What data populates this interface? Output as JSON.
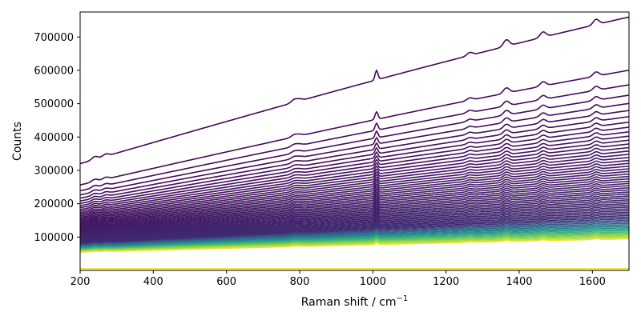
{
  "chart_data": {
    "type": "line",
    "title": "",
    "xlabel_main": "Raman shift / cm",
    "xlabel_sup": "−1",
    "ylabel": "Counts",
    "xlim": [
      200,
      1700
    ],
    "ylim": [
      0,
      775000
    ],
    "x_ticks": [
      200,
      400,
      600,
      800,
      1000,
      1200,
      1400,
      1600
    ],
    "x_tick_labels": [
      "200",
      "400",
      "600",
      "800",
      "1000",
      "1200",
      "1400",
      "1600"
    ],
    "y_ticks": [
      100000,
      200000,
      300000,
      400000,
      500000,
      600000,
      700000
    ],
    "y_tick_labels": [
      "100000",
      "200000",
      "300000",
      "400000",
      "500000",
      "600000",
      "700000"
    ],
    "grid": false,
    "legend": "none",
    "colormap": "viridis",
    "series_count": 60,
    "series_envelope": {
      "start_values_at_200_top": 320000,
      "end_values_at_1700_top": 760000,
      "start_values_at_200_bottom": 55000,
      "end_values_at_1700_bottom": 95000
    },
    "flat_series_value": 5000,
    "peaks": [
      {
        "x": 240,
        "relative_height": 0.05
      },
      {
        "x": 270,
        "relative_height": 0.04
      },
      {
        "x": 785,
        "relative_height": 0.05
      },
      {
        "x": 800,
        "relative_height": 0.03
      },
      {
        "x": 1010,
        "relative_height": 0.16
      },
      {
        "x": 1265,
        "relative_height": 0.05
      },
      {
        "x": 1365,
        "relative_height": 0.11
      },
      {
        "x": 1465,
        "relative_height": 0.09
      },
      {
        "x": 1610,
        "relative_height": 0.09
      }
    ]
  }
}
